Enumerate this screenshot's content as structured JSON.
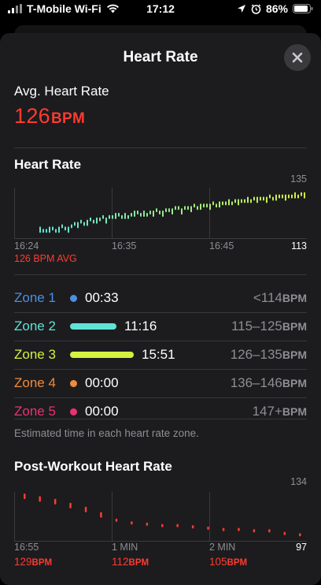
{
  "status_bar": {
    "carrier": "T-Mobile Wi-Fi",
    "time": "17:12",
    "battery": "86%"
  },
  "sheet": {
    "title": "Heart Rate"
  },
  "avg": {
    "label": "Avg. Heart Rate",
    "value": "126",
    "unit": "BPM"
  },
  "heart_rate_chart": {
    "title": "Heart Rate",
    "y_max_label": "135",
    "y_min_label": "113",
    "x_labels": [
      "16:24",
      "16:35",
      "16:45"
    ],
    "avg_label": "126 BPM AVG"
  },
  "zones": [
    {
      "name": "Zone 1",
      "time": "00:33",
      "range": "<114",
      "unit": "BPM",
      "color": "#4a90e2",
      "indicator": "dot"
    },
    {
      "name": "Zone 2",
      "time": "11:16",
      "range": "115–125",
      "unit": "BPM",
      "color": "#5ee3d6",
      "indicator": "bar",
      "fraction": 0.42
    },
    {
      "name": "Zone 3",
      "time": "15:51",
      "range": "126–135",
      "unit": "BPM",
      "color": "#d4f23f",
      "indicator": "bar",
      "fraction": 0.58
    },
    {
      "name": "Zone 4",
      "time": "00:00",
      "range": "136–146",
      "unit": "BPM",
      "color": "#f08a3c",
      "indicator": "dot"
    },
    {
      "name": "Zone 5",
      "time": "00:00",
      "range": "147+",
      "unit": "BPM",
      "color": "#e8336e",
      "indicator": "dot"
    }
  ],
  "zones_caption": "Estimated time in each heart rate zone.",
  "post_workout": {
    "title": "Post-Workout Heart Rate",
    "y_max_label": "134",
    "y_min_label": "97",
    "x_labels": [
      "16:55",
      "1 MIN",
      "2 MIN"
    ],
    "values": [
      {
        "value": "129",
        "unit": "BPM"
      },
      {
        "value": "112",
        "unit": "BPM"
      },
      {
        "value": "105",
        "unit": "BPM"
      }
    ]
  },
  "chart_data": [
    {
      "type": "scatter",
      "title": "Heart Rate",
      "ylim": [
        113,
        135
      ],
      "x_ticks": [
        "16:24",
        "16:35",
        "16:45"
      ],
      "color_scale": [
        "#5ee3d6",
        "#d4f23f"
      ],
      "series": [
        {
          "values": [
            117,
            116,
            116,
            117,
            117,
            116,
            117,
            118,
            117,
            117,
            118,
            119,
            119,
            120,
            119,
            120,
            121,
            120,
            121,
            121,
            122,
            121,
            122,
            122,
            123,
            123,
            122,
            123,
            122,
            123,
            124,
            124,
            123,
            124,
            123,
            124,
            124,
            125,
            124,
            124,
            125,
            125,
            125,
            126,
            126,
            125,
            126,
            126,
            126,
            127,
            126,
            127,
            127,
            127,
            127,
            128,
            127,
            128,
            128,
            128,
            129,
            128,
            129,
            129,
            129,
            129,
            130,
            129,
            130,
            130,
            130,
            130,
            130,
            131,
            130,
            131,
            131,
            131,
            131,
            131,
            131,
            132,
            131,
            132,
            132
          ]
        }
      ]
    },
    {
      "type": "scatter",
      "title": "Post-Workout Heart Rate",
      "ylim": [
        97,
        134
      ],
      "x_ticks": [
        "16:55",
        "1 MIN",
        "2 MIN"
      ],
      "series": [
        {
          "values": [
            131,
            129,
            127,
            124,
            121,
            117,
            112,
            110,
            109,
            108,
            108,
            107,
            106,
            105,
            105,
            104,
            104,
            102,
            101
          ]
        }
      ]
    }
  ]
}
